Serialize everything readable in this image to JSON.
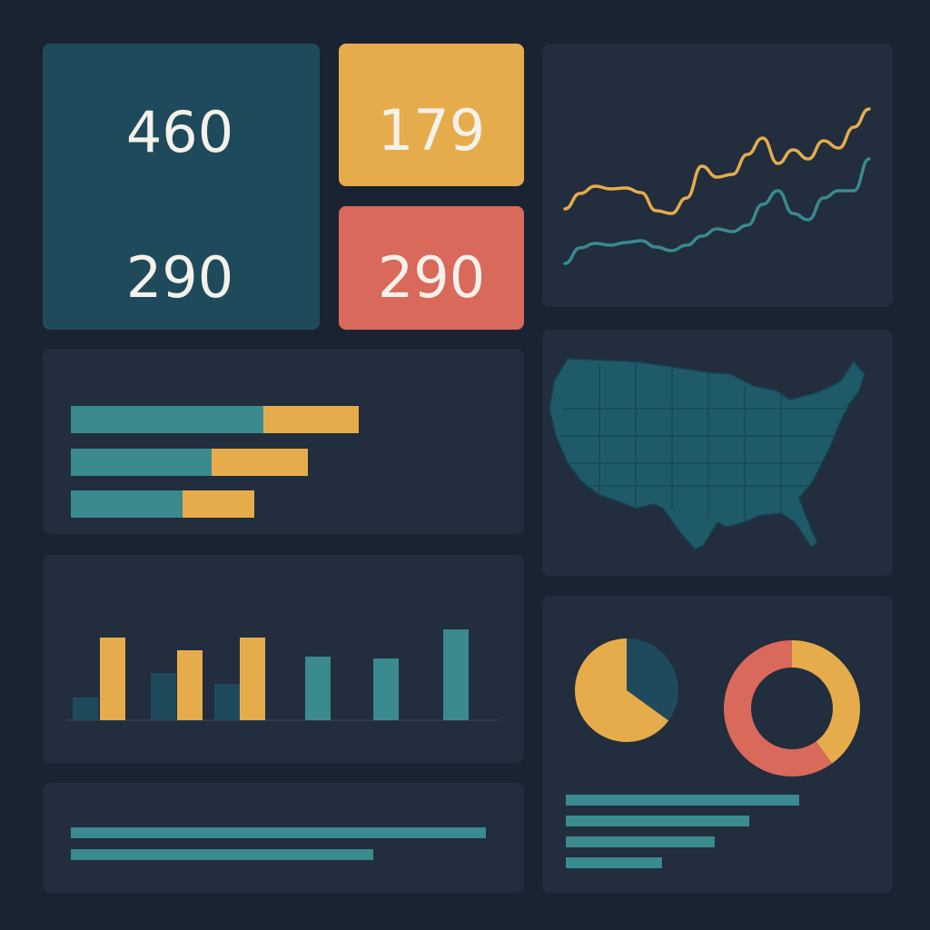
{
  "kpis": [
    {
      "value": 460
    },
    {
      "value": 290
    },
    {
      "value": 179
    },
    {
      "value": 290
    }
  ],
  "line_chart": {
    "type": "line",
    "series": [
      {
        "color": "#e6ac4b",
        "values": [
          100,
          117,
          125,
          122,
          123,
          118,
          98,
          95,
          112,
          147,
          135,
          138,
          160,
          178,
          150,
          165,
          155,
          175,
          167,
          190,
          210
        ]
      },
      {
        "color": "#3a8a8e",
        "values": [
          40,
          57,
          62,
          60,
          63,
          65,
          58,
          54,
          60,
          70,
          78,
          75,
          82,
          105,
          120,
          95,
          88,
          112,
          120,
          120,
          155
        ]
      }
    ]
  },
  "stacked_bars": {
    "type": "bar",
    "series": [
      {
        "color": "#3a8a8e",
        "values": [
          212,
          155,
          123
        ]
      },
      {
        "color": "#e6ac4b",
        "values": [
          105,
          106,
          79
        ]
      }
    ]
  },
  "column_chart": {
    "type": "bar",
    "series": [
      {
        "color": "#1e4a5c",
        "values": [
          25,
          52,
          40,
          null,
          null,
          null
        ]
      },
      {
        "color": "#e6ac4b",
        "values": [
          91,
          77,
          91,
          null,
          null,
          null
        ]
      },
      {
        "color": "#3a8a8e",
        "values": [
          null,
          null,
          null,
          70,
          68,
          100
        ]
      }
    ]
  },
  "pie_chart": {
    "type": "pie",
    "colors": [
      "#1e4a5c",
      "#e6ac4b"
    ],
    "values": [
      35,
      65
    ]
  },
  "donut_chart": {
    "type": "donut",
    "colors": [
      "#e6ac4b",
      "#d9695a"
    ],
    "values": [
      40,
      60
    ]
  },
  "side_bars": {
    "type": "bar",
    "color": "#3a8a8e",
    "values": [
      257,
      202,
      164,
      106
    ]
  },
  "bottom_bars": {
    "type": "bar",
    "color": "#3a8a8e",
    "values": [
      457,
      333
    ]
  }
}
